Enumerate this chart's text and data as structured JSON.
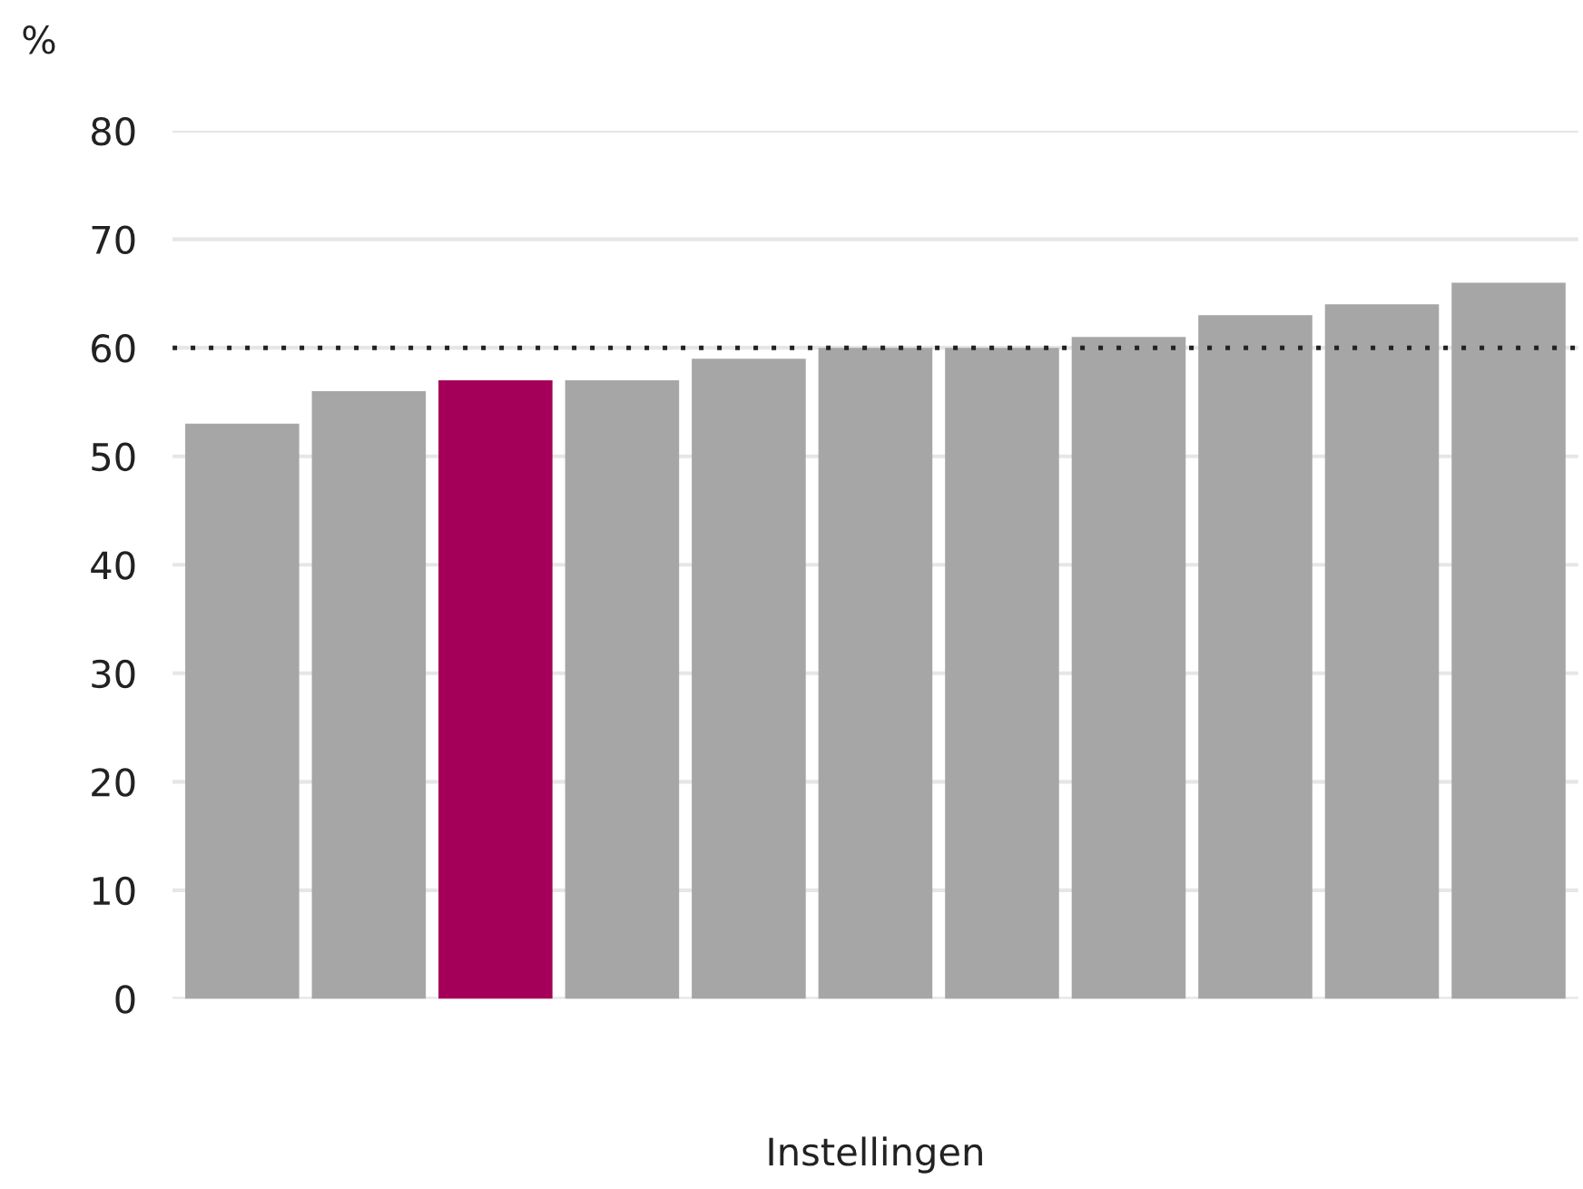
{
  "chart_data": {
    "type": "bar",
    "xlabel": "Instellingen",
    "ylabel": "%",
    "categories": [
      null,
      null,
      null,
      null,
      null,
      null,
      null,
      null,
      null,
      null,
      null
    ],
    "values": [
      53,
      56,
      57,
      57,
      59,
      60,
      60,
      61,
      63,
      64,
      66
    ],
    "colors": [
      "#a6a6a6",
      "#a6a6a6",
      "#a50059",
      "#a6a6a6",
      "#a6a6a6",
      "#a6a6a6",
      "#a6a6a6",
      "#a6a6a6",
      "#a6a6a6",
      "#a6a6a6",
      "#a6a6a6"
    ],
    "ylim": [
      0,
      80
    ],
    "yticks": [
      0,
      10,
      20,
      30,
      40,
      50,
      60,
      70,
      80
    ],
    "grid": "y",
    "ref_lines": [
      {
        "axis": "y",
        "value": 60,
        "color": "#222222",
        "line_style": "dotted"
      }
    ]
  }
}
